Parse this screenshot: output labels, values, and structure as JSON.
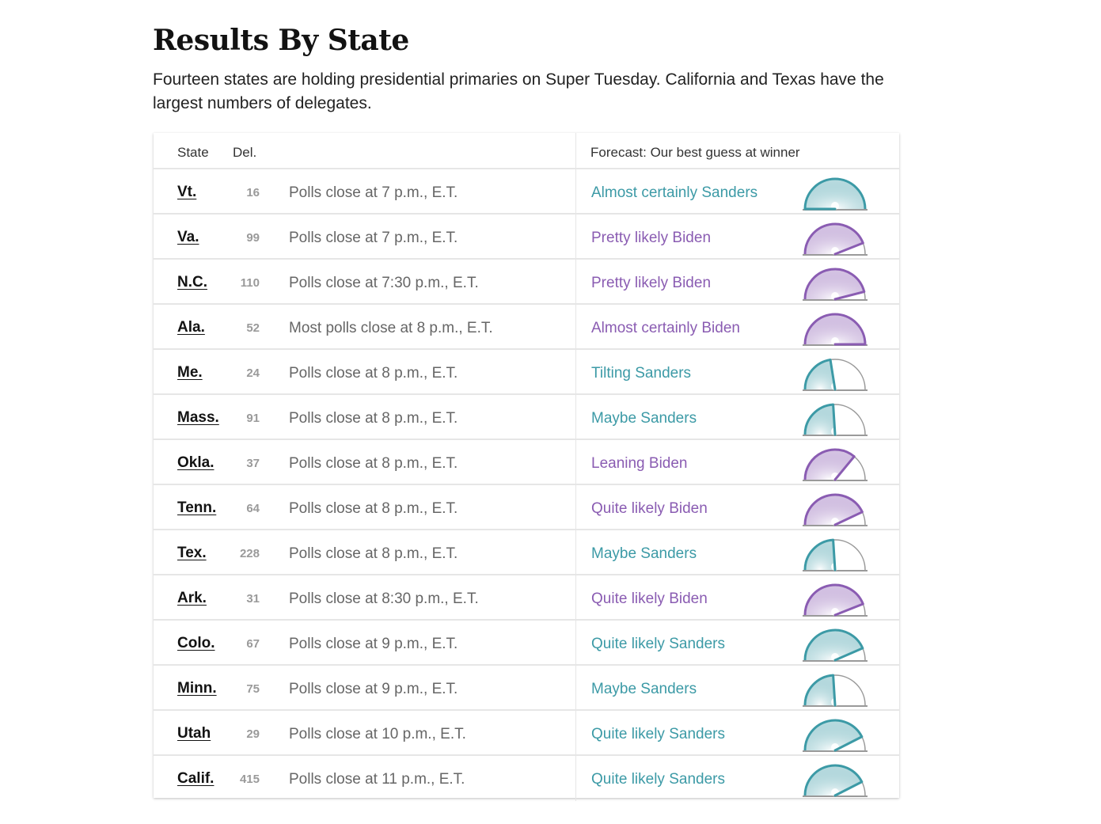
{
  "title": "Results By State",
  "subtitle": "Fourteen states are holding presidential primaries on Super Tuesday. California and Texas have the largest numbers of delegates.",
  "table": {
    "headers": {
      "state": "State",
      "delegates": "Del.",
      "forecast": "Forecast: Our best guess at winner"
    },
    "colors": {
      "Sanders": "#3c9aa6",
      "Biden": "#8a5cb2"
    },
    "rows": [
      {
        "state": "Vt.",
        "delegates": "16",
        "polls": "Polls close at 7 p.m., E.T.",
        "forecast": "Almost certainly Sanders",
        "candidate": "Sanders",
        "gauge_level": 0.0
      },
      {
        "state": "Va.",
        "delegates": "99",
        "polls": "Polls close at 7 p.m., E.T.",
        "forecast": "Pretty likely Biden",
        "candidate": "Biden",
        "gauge_level": 0.88
      },
      {
        "state": "N.C.",
        "delegates": "110",
        "polls": "Polls close at 7:30 p.m., E.T.",
        "forecast": "Pretty likely Biden",
        "candidate": "Biden",
        "gauge_level": 0.92
      },
      {
        "state": "Ala.",
        "delegates": "52",
        "polls": "Most polls close at 8 p.m., E.T.",
        "forecast": "Almost certainly Biden",
        "candidate": "Biden",
        "gauge_level": 1.0
      },
      {
        "state": "Me.",
        "delegates": "24",
        "polls": "Polls close at 8 p.m., E.T.",
        "forecast": "Tilting Sanders",
        "candidate": "Sanders",
        "gauge_level": 0.45
      },
      {
        "state": "Mass.",
        "delegates": "91",
        "polls": "Polls close at 8 p.m., E.T.",
        "forecast": "Maybe Sanders",
        "candidate": "Sanders",
        "gauge_level": 0.48
      },
      {
        "state": "Okla.",
        "delegates": "37",
        "polls": "Polls close at 8 p.m., E.T.",
        "forecast": "Leaning Biden",
        "candidate": "Biden",
        "gauge_level": 0.72
      },
      {
        "state": "Tenn.",
        "delegates": "64",
        "polls": "Polls close at 8 p.m., E.T.",
        "forecast": "Quite likely Biden",
        "candidate": "Biden",
        "gauge_level": 0.86
      },
      {
        "state": "Tex.",
        "delegates": "228",
        "polls": "Polls close at 8 p.m., E.T.",
        "forecast": "Maybe Sanders",
        "candidate": "Sanders",
        "gauge_level": 0.48
      },
      {
        "state": "Ark.",
        "delegates": "31",
        "polls": "Polls close at 8:30 p.m., E.T.",
        "forecast": "Quite likely Biden",
        "candidate": "Biden",
        "gauge_level": 0.88
      },
      {
        "state": "Colo.",
        "delegates": "67",
        "polls": "Polls close at 9 p.m., E.T.",
        "forecast": "Quite likely Sanders",
        "candidate": "Sanders",
        "gauge_level": 0.87
      },
      {
        "state": "Minn.",
        "delegates": "75",
        "polls": "Polls close at 9 p.m., E.T.",
        "forecast": "Maybe Sanders",
        "candidate": "Sanders",
        "gauge_level": 0.48
      },
      {
        "state": "Utah",
        "delegates": "29",
        "polls": "Polls close at 10 p.m., E.T.",
        "forecast": "Quite likely Sanders",
        "candidate": "Sanders",
        "gauge_level": 0.85
      },
      {
        "state": "Calif.",
        "delegates": "415",
        "polls": "Polls close at 11 p.m., E.T.",
        "forecast": "Quite likely Sanders",
        "candidate": "Sanders",
        "gauge_level": 0.85
      }
    ]
  }
}
